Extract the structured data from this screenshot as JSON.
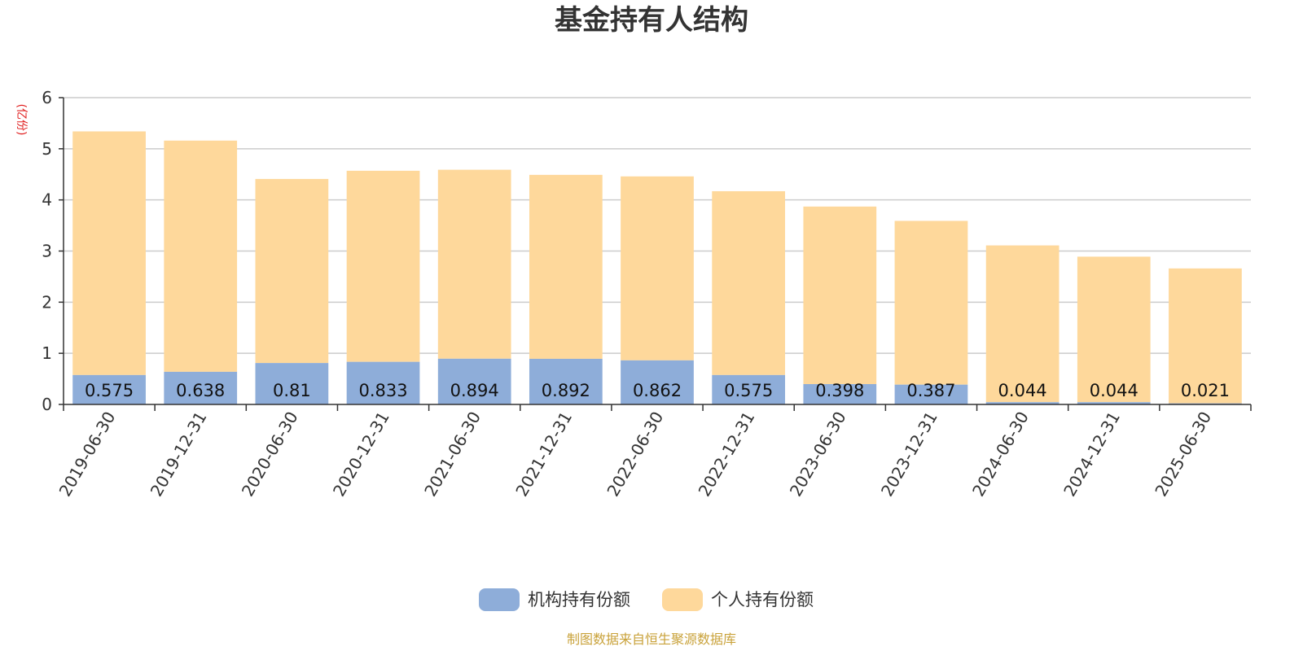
{
  "chart_data": {
    "type": "bar",
    "stacked": true,
    "title": "基金持有人结构",
    "y_unit_label": "(亿份)",
    "ylim": [
      0,
      6
    ],
    "yticks": [
      0,
      1,
      2,
      3,
      4,
      5,
      6
    ],
    "grid": true,
    "legend_position": "bottom",
    "categories": [
      "2019-06-30",
      "2019-12-31",
      "2020-06-30",
      "2020-12-31",
      "2021-06-30",
      "2021-12-31",
      "2022-06-30",
      "2022-12-31",
      "2023-06-30",
      "2023-12-31",
      "2024-06-30",
      "2024-12-31",
      "2025-06-30"
    ],
    "series": [
      {
        "name": "机构持有份额",
        "color": "#8eadd9",
        "values": [
          0.575,
          0.638,
          0.81,
          0.833,
          0.894,
          0.892,
          0.862,
          0.575,
          0.398,
          0.387,
          0.044,
          0.044,
          0.021
        ],
        "labels": [
          "0.575",
          "0.638",
          "0.81",
          "0.833",
          "0.894",
          "0.892",
          "0.862",
          "0.575",
          "0.398",
          "0.387",
          "0.044",
          "0.044",
          "0.021"
        ]
      },
      {
        "name": "个人持有份额",
        "color": "#fed89b",
        "values": [
          4.765,
          4.522,
          3.6,
          3.737,
          3.696,
          3.598,
          3.598,
          3.595,
          3.472,
          3.203,
          3.066,
          2.846,
          2.639
        ]
      }
    ],
    "source_note": "制图数据来自恒生聚源数据库",
    "source_color": "#c9a23a",
    "unit_color": "#e02020"
  }
}
